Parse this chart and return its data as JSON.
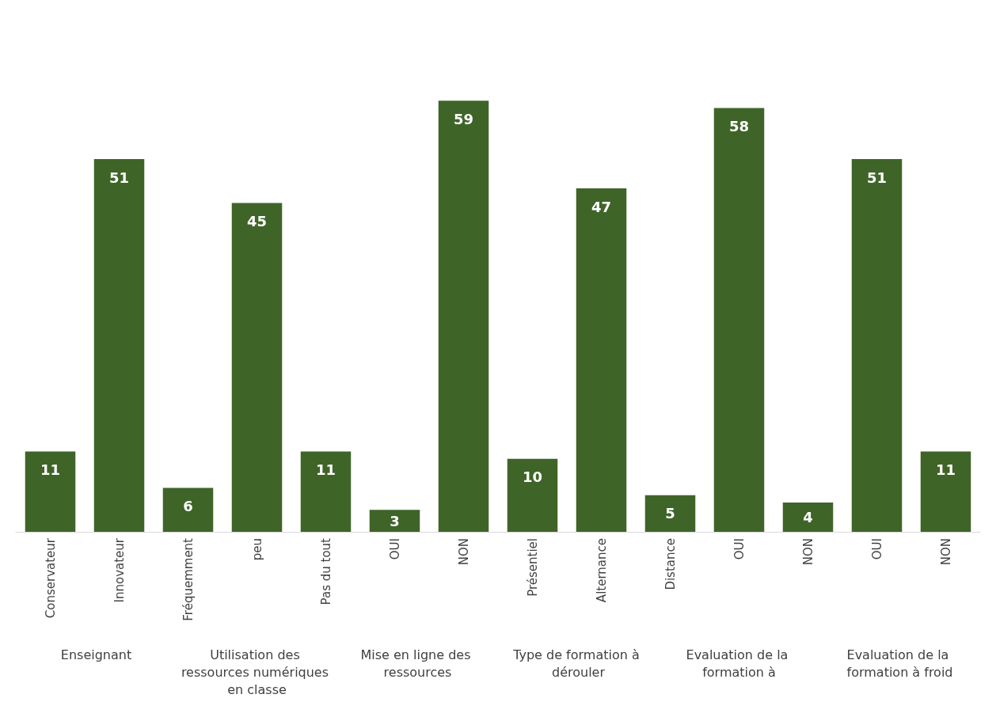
{
  "chart_data": {
    "type": "bar",
    "categories": [
      "Conservateur",
      "Innovateur",
      "Fréquemment",
      "peu",
      "Pas du tout",
      "OUI",
      "NON",
      "Présentiel",
      "Alternance",
      "Distance",
      "OUI",
      "NON",
      "OUI",
      "NON"
    ],
    "values": [
      11,
      51,
      6,
      45,
      11,
      3,
      59,
      10,
      47,
      5,
      58,
      4,
      51,
      11
    ],
    "color": "#3f6428",
    "data_labels": true,
    "grid": false,
    "annotations": [
      "Enseignant",
      "Utilisation des ressources numériques en classe",
      "Mise en ligne des ressources",
      "Type de formation à dérouler",
      "Evaluation de la formation à",
      "Evaluation de la formation à froid"
    ]
  }
}
